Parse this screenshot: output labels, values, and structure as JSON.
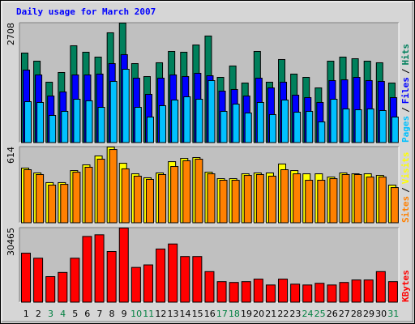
{
  "chart_data": [
    {
      "type": "bar",
      "title": "Daily usage for March 2007",
      "ylim": [
        0,
        2708
      ],
      "yticks": [
        2708
      ],
      "legend_separator": "/",
      "series": [
        {
          "name": "Hits",
          "color": "#00805c",
          "values": [
            2031,
            1848,
            1373,
            1592,
            2196,
            2050,
            1940,
            2489,
            2708,
            1793,
            1500,
            1812,
            2068,
            2050,
            2214,
            2416,
            1482,
            1739,
            1354,
            2068,
            1373,
            1885,
            1556,
            1482,
            1244,
            1848,
            1940,
            1903,
            1848,
            1812,
            1354
          ]
        },
        {
          "name": "Files",
          "color": "#0000ff",
          "values": [
            1647,
            1537,
            1061,
            1153,
            1537,
            1537,
            1556,
            1793,
            1995,
            1464,
            1098,
            1464,
            1537,
            1501,
            1574,
            1519,
            1171,
            1208,
            1061,
            1464,
            1244,
            1373,
            1080,
            1025,
            915,
            1409,
            1427,
            1482,
            1409,
            1391,
            1025
          ]
        },
        {
          "name": "Pages",
          "color": "#00c0ff",
          "values": [
            933,
            915,
            622,
            714,
            988,
            952,
            805,
            1391,
            1665,
            805,
            586,
            842,
            970,
            1043,
            988,
            1409,
            714,
            878,
            677,
            915,
            641,
            970,
            695,
            714,
            476,
            988,
            769,
            750,
            769,
            732,
            586
          ]
        }
      ]
    },
    {
      "type": "bar",
      "ylim": [
        0,
        614
      ],
      "yticks": [
        614
      ],
      "legend_separator": "/",
      "series": [
        {
          "name": "Visits",
          "color": "#ffff00",
          "values": [
            444,
            405,
            327,
            327,
            424,
            470,
            542,
            614,
            483,
            398,
            366,
            405,
            496,
            522,
            529,
            411,
            359,
            359,
            398,
            405,
            405,
            477,
            424,
            398,
            398,
            372,
            405,
            398,
            398,
            385,
            307
          ]
        },
        {
          "name": "Sites",
          "color": "#ff8000",
          "values": [
            431,
            392,
            307,
            313,
            411,
            451,
            516,
            594,
            438,
            379,
            353,
            392,
            457,
            503,
            516,
            398,
            346,
            346,
            385,
            392,
            379,
            431,
            398,
            346,
            346,
            359,
            392,
            392,
            372,
            372,
            287
          ]
        }
      ]
    },
    {
      "type": "bar",
      "ylim": [
        0,
        30465
      ],
      "yticks": [
        30465
      ],
      "categories": [
        "1",
        "2",
        "3",
        "4",
        "5",
        "6",
        "7",
        "8",
        "9",
        "10",
        "11",
        "12",
        "13",
        "14",
        "15",
        "16",
        "17",
        "18",
        "19",
        "20",
        "21",
        "22",
        "23",
        "24",
        "25",
        "26",
        "27",
        "28",
        "29",
        "30",
        "31"
      ],
      "category_colors": [
        "#000000",
        "#000000",
        "#008040",
        "#008040",
        "#000000",
        "#000000",
        "#000000",
        "#000000",
        "#000000",
        "#008040",
        "#008040",
        "#000000",
        "#000000",
        "#000000",
        "#000000",
        "#000000",
        "#008040",
        "#008040",
        "#000000",
        "#000000",
        "#000000",
        "#000000",
        "#000000",
        "#008040",
        "#008040",
        "#000000",
        "#000000",
        "#000000",
        "#000000",
        "#000000",
        "#008040"
      ],
      "series": [
        {
          "name": "KBytes",
          "color": "#ff0000",
          "values": [
            20180,
            18130,
            10600,
            12310,
            18130,
            27020,
            27700,
            20860,
            30465,
            14360,
            15390,
            21890,
            23940,
            18810,
            18810,
            12650,
            8550,
            8210,
            8550,
            9580,
            7180,
            9580,
            7520,
            7180,
            7870,
            7180,
            8210,
            9230,
            9230,
            12650,
            8550
          ]
        }
      ]
    }
  ]
}
